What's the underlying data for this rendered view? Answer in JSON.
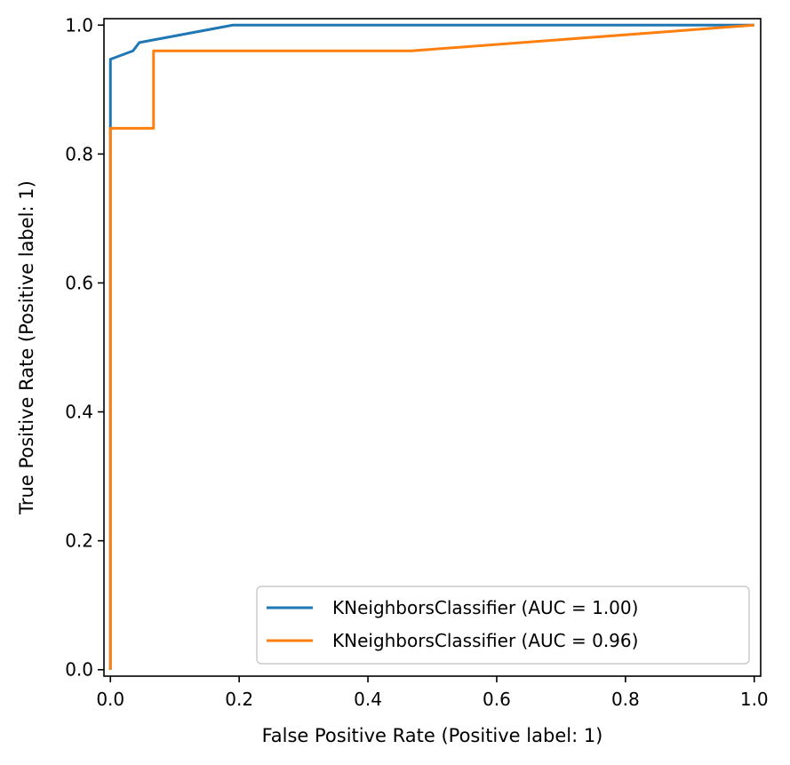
{
  "chart_data": {
    "type": "line",
    "xlabel": "False Positive Rate (Positive label: 1)",
    "ylabel": "True Positive Rate (Positive label: 1)",
    "xlim": [
      -0.01,
      1.01
    ],
    "ylim": [
      -0.01,
      1.01
    ],
    "xticks": [
      0.0,
      0.2,
      0.4,
      0.6,
      0.8,
      1.0
    ],
    "yticks": [
      0.0,
      0.2,
      0.4,
      0.6,
      0.8,
      1.0
    ],
    "xtick_labels": [
      "0.0",
      "0.2",
      "0.4",
      "0.6",
      "0.8",
      "1.0"
    ],
    "ytick_labels": [
      "0.0",
      "0.2",
      "0.4",
      "0.6",
      "0.8",
      "1.0"
    ],
    "grid": false,
    "legend_position": "lower-right",
    "series": [
      {
        "name": "KNeighborsClassifier (AUC = 1.00)",
        "color": "#1f77b4",
        "x": [
          0.0,
          0.0,
          0.0,
          0.035,
          0.045,
          0.19,
          1.0
        ],
        "y": [
          0.0,
          0.84,
          0.947,
          0.96,
          0.973,
          1.0,
          1.0
        ]
      },
      {
        "name": "KNeighborsClassifier (AUC = 0.96)",
        "color": "#ff7f0e",
        "x": [
          0.0,
          0.0,
          0.067,
          0.067,
          0.467,
          1.0
        ],
        "y": [
          0.0,
          0.84,
          0.84,
          0.96,
          0.96,
          1.0
        ]
      }
    ]
  }
}
